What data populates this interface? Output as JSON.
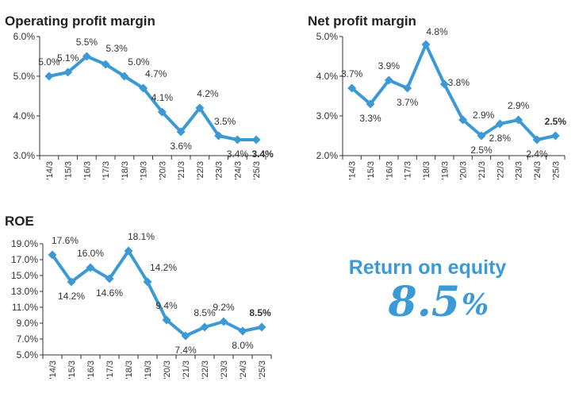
{
  "colors": {
    "series": "#3b9ad6",
    "axis": "#333333",
    "text": "#333333",
    "accent": "#3b9ad6"
  },
  "chart_data": [
    {
      "type": "line",
      "title": "Operating profit margin",
      "x": [
        "'14/3",
        "'15/3",
        "'16/3",
        "'17/3",
        "'18/3",
        "'19/3",
        "'20/3",
        "'21/3",
        "'22/3",
        "'23/3",
        "'24/3",
        "'25/3"
      ],
      "values": [
        5.0,
        5.1,
        5.5,
        5.3,
        5.0,
        4.7,
        4.1,
        3.6,
        4.2,
        3.5,
        3.4,
        3.4
      ],
      "labels": [
        "5.0%",
        "5.1%",
        "5.5%",
        "5.3%",
        "5.0%",
        "4.7%",
        "4.1%",
        "3.6%",
        "4.2%",
        "3.5%",
        "3.4%",
        "3.4%"
      ],
      "ylim": [
        3.0,
        6.0
      ],
      "yticks": [
        "3.0%",
        "4.0%",
        "5.0%",
        "6.0%"
      ],
      "ytick_values": [
        3.0,
        4.0,
        5.0,
        6.0
      ],
      "bold_last_label": true,
      "grid": false
    },
    {
      "type": "line",
      "title": "Net profit margin",
      "x": [
        "'14/3",
        "'15/3",
        "'16/3",
        "'17/3",
        "'18/3",
        "'19/3",
        "'20/3",
        "'21/3",
        "'22/3",
        "'23/3",
        "'24/3",
        "'25/3"
      ],
      "values": [
        3.7,
        3.3,
        3.9,
        3.7,
        4.8,
        3.8,
        2.9,
        2.5,
        2.8,
        2.9,
        2.4,
        2.5
      ],
      "labels": [
        "3.7%",
        "3.3%",
        "3.9%",
        "3.7%",
        "4.8%",
        "3.8%",
        "2.9%",
        "2.5%",
        "2.8%",
        "2.9%",
        "2.4%",
        "2.5%"
      ],
      "ylim": [
        2.0,
        5.0
      ],
      "yticks": [
        "2.0%",
        "3.0%",
        "4.0%",
        "5.0%"
      ],
      "ytick_values": [
        2.0,
        3.0,
        4.0,
        5.0
      ],
      "bold_last_label": true,
      "grid": false
    },
    {
      "type": "line",
      "title": "ROE",
      "x": [
        "'14/3",
        "'15/3",
        "'16/3",
        "'17/3",
        "'18/3",
        "'19/3",
        "'20/3",
        "'21/3",
        "'22/3",
        "'23/3",
        "'24/3",
        "'25/3"
      ],
      "values": [
        17.6,
        14.2,
        16.0,
        14.6,
        18.1,
        14.2,
        9.4,
        7.4,
        8.5,
        9.2,
        8.0,
        8.5
      ],
      "labels": [
        "17.6%",
        "14.2%",
        "16.0%",
        "14.6%",
        "18.1%",
        "14.2%",
        "9.4%",
        "7.4%",
        "8.5%",
        "9.2%",
        "8.0%",
        "8.5%"
      ],
      "ylim": [
        5.0,
        19.0
      ],
      "yticks": [
        "5.0%",
        "7.0%",
        "9.0%",
        "11.0%",
        "13.0%",
        "15.0%",
        "17.0%",
        "19.0%"
      ],
      "ytick_values": [
        5.0,
        7.0,
        9.0,
        11.0,
        13.0,
        15.0,
        17.0,
        19.0
      ],
      "bold_last_label": true,
      "grid": false
    }
  ],
  "callout": {
    "heading": "Return on equity",
    "value": "8.5",
    "unit": "%"
  }
}
